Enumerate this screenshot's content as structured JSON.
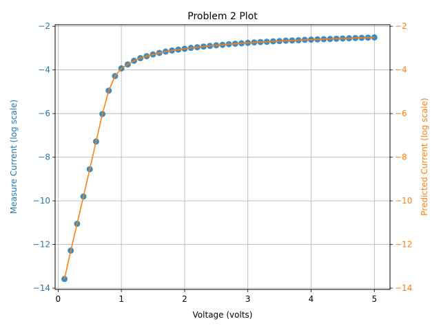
{
  "chart_data": {
    "type": "scatter",
    "title": "Problem 2 Plot",
    "xlabel": "Voltage (volts)",
    "ylabel_left": "Measure Current (log scale)",
    "ylabel_right": "Predicted Current (log scale)",
    "xlim": [
      -0.0475,
      5.2475
    ],
    "ylim_left": [
      -14.06,
      -1.93
    ],
    "ylim_right": [
      -14.06,
      -1.93
    ],
    "x_ticks": [
      0,
      1,
      2,
      3,
      4,
      5
    ],
    "x_tick_labels": [
      "0",
      "1",
      "2",
      "3",
      "4",
      "5"
    ],
    "y_ticks": [
      -14,
      -12,
      -10,
      -8,
      -6,
      -4,
      -2
    ],
    "y_tick_labels": [
      "−14",
      "−12",
      "−10",
      "−8",
      "−6",
      "−4",
      "−2"
    ],
    "grid": true,
    "colors": {
      "measured": "#1f77b4",
      "predicted": "#ff7f0e",
      "grid": "#b0b0b0"
    },
    "x": [
      0.1,
      0.2,
      0.3,
      0.4,
      0.5,
      0.6,
      0.7,
      0.8,
      0.9,
      1.0,
      1.1,
      1.2,
      1.3,
      1.4,
      1.5,
      1.6,
      1.7,
      1.8,
      1.9,
      2.0,
      2.1,
      2.2,
      2.3,
      2.4,
      2.5,
      2.6,
      2.7,
      2.8,
      2.9,
      3.0,
      3.1,
      3.2,
      3.3,
      3.4,
      3.5,
      3.6,
      3.7,
      3.8,
      3.9,
      4.0,
      4.1,
      4.2,
      4.3,
      4.4,
      4.5,
      4.6,
      4.7,
      4.8,
      4.9,
      5.0
    ],
    "series": [
      {
        "style": "points",
        "axis": "left",
        "values": [
          -13.58,
          -12.28,
          -11.05,
          -9.8,
          -8.55,
          -7.28,
          -6.02,
          -4.95,
          -4.28,
          -3.93,
          -3.75,
          -3.58,
          -3.46,
          -3.37,
          -3.29,
          -3.22,
          -3.16,
          -3.11,
          -3.07,
          -3.03,
          -2.99,
          -2.96,
          -2.93,
          -2.9,
          -2.87,
          -2.85,
          -2.82,
          -2.8,
          -2.78,
          -2.76,
          -2.74,
          -2.72,
          -2.71,
          -2.69,
          -2.68,
          -2.66,
          -2.65,
          -2.64,
          -2.62,
          -2.61,
          -2.6,
          -2.59,
          -2.58,
          -2.57,
          -2.56,
          -2.55,
          -2.54,
          -2.53,
          -2.52,
          -2.51
        ]
      },
      {
        "style": "line",
        "axis": "right",
        "values": [
          -13.58,
          -12.28,
          -11.05,
          -9.8,
          -8.55,
          -7.28,
          -6.02,
          -4.95,
          -4.28,
          -3.93,
          -3.75,
          -3.58,
          -3.46,
          -3.37,
          -3.29,
          -3.22,
          -3.16,
          -3.11,
          -3.07,
          -3.03,
          -2.99,
          -2.96,
          -2.93,
          -2.9,
          -2.87,
          -2.85,
          -2.82,
          -2.8,
          -2.78,
          -2.76,
          -2.74,
          -2.72,
          -2.71,
          -2.69,
          -2.68,
          -2.66,
          -2.65,
          -2.64,
          -2.62,
          -2.61,
          -2.6,
          -2.59,
          -2.58,
          -2.57,
          -2.56,
          -2.55,
          -2.54,
          -2.53,
          -2.52,
          -2.51
        ]
      }
    ]
  }
}
